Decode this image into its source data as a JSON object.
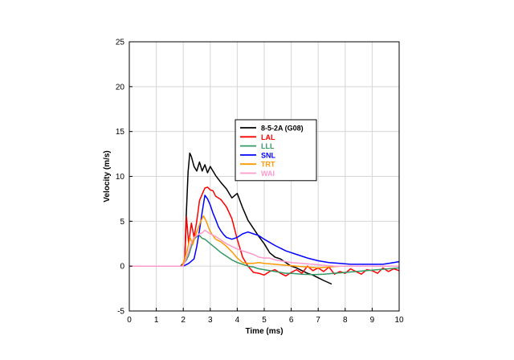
{
  "chart_data": {
    "type": "line",
    "xlabel": "Time (ms)",
    "ylabel": "Velocity (m/s)",
    "xlim": [
      0,
      10
    ],
    "ylim": [
      -5,
      25
    ],
    "xticks": [
      0,
      1,
      2,
      3,
      4,
      5,
      6,
      7,
      8,
      9,
      10
    ],
    "yticks": [
      -5,
      0,
      5,
      10,
      15,
      20,
      25
    ],
    "grid": true,
    "legend_position": "upper-center",
    "series": [
      {
        "name": "8-5-2A (G08)",
        "color": "#000000",
        "x": [
          0,
          1,
          1.9,
          2.05,
          2.1,
          2.18,
          2.24,
          2.3,
          2.4,
          2.5,
          2.6,
          2.7,
          2.8,
          2.9,
          3.0,
          3.2,
          3.4,
          3.6,
          3.8,
          4.0,
          4.2,
          4.4,
          4.6,
          4.8,
          5.0,
          5.2,
          5.4,
          5.6,
          5.8,
          6.0,
          6.2,
          6.4,
          6.6,
          6.8,
          7.0,
          7.2,
          7.5
        ],
        "y": [
          0,
          0,
          0,
          0.5,
          5,
          10.5,
          12.6,
          12.2,
          11.1,
          10.6,
          11.6,
          10.6,
          11.3,
          10.4,
          11.1,
          10.1,
          9.3,
          8.6,
          7.6,
          8.1,
          6.5,
          5.1,
          4.2,
          3.3,
          2.5,
          1.5,
          1.0,
          0.8,
          0.4,
          0.0,
          -0.2,
          -0.5,
          -0.8,
          -1.0,
          -1.3,
          -1.6,
          -2.0
        ]
      },
      {
        "name": "LAL",
        "color": "#ff0000",
        "x": [
          0,
          1,
          1.95,
          2.05,
          2.12,
          2.2,
          2.3,
          2.4,
          2.5,
          2.6,
          2.7,
          2.8,
          2.9,
          3.0,
          3.1,
          3.2,
          3.4,
          3.6,
          3.8,
          4.0,
          4.2,
          4.4,
          4.6,
          4.8,
          5.0,
          5.2,
          5.4,
          5.6,
          5.8,
          6.0,
          6.2,
          6.4,
          6.6,
          6.8,
          7.0,
          7.2,
          7.4,
          7.6,
          7.8,
          8.0,
          8.2,
          8.4,
          8.6,
          8.8,
          9.0,
          9.2,
          9.4,
          9.6,
          9.8,
          10.0
        ],
        "y": [
          0,
          0,
          0,
          0.5,
          5.5,
          2.5,
          4.8,
          3.2,
          5.0,
          7.3,
          8.0,
          8.7,
          8.8,
          8.5,
          8.4,
          7.8,
          7.4,
          6.6,
          5.3,
          3.0,
          1.0,
          0.0,
          -0.7,
          -0.8,
          -1.0,
          -0.6,
          -0.4,
          -0.8,
          -1.1,
          -0.7,
          -0.4,
          -0.8,
          0.0,
          -0.5,
          -0.2,
          -0.6,
          -0.1,
          -0.9,
          -0.6,
          -0.8,
          -0.3,
          -0.6,
          -0.9,
          -0.4,
          -0.5,
          -0.8,
          -0.2,
          -0.6,
          -0.3,
          -0.5
        ]
      },
      {
        "name": "LLL",
        "color": "#339966",
        "x": [
          0,
          1,
          1.95,
          2.1,
          2.2,
          2.3,
          2.4,
          2.5,
          2.6,
          2.7,
          2.8,
          3.0,
          3.2,
          3.4,
          3.6,
          3.8,
          4.0,
          4.2,
          4.4,
          4.6,
          4.8,
          5.0,
          5.2,
          5.4,
          5.6,
          5.8,
          6.0,
          6.4,
          6.8,
          7.2,
          7.6,
          8.0,
          8.4,
          8.8,
          9.2,
          9.6,
          10.0
        ],
        "y": [
          0,
          0,
          0,
          0.6,
          1.2,
          2.2,
          3.0,
          3.3,
          3.4,
          3.1,
          3.0,
          2.5,
          2.0,
          1.5,
          1.1,
          0.7,
          0.4,
          0.2,
          0.0,
          -0.1,
          -0.3,
          -0.4,
          -0.5,
          -0.6,
          -0.7,
          -0.8,
          -0.8,
          -0.9,
          -0.95,
          -0.9,
          -0.8,
          -0.7,
          -0.6,
          -0.5,
          -0.4,
          -0.3,
          -0.2
        ]
      },
      {
        "name": "SNL",
        "color": "#0000ff",
        "x": [
          0,
          1,
          2.0,
          2.2,
          2.4,
          2.5,
          2.6,
          2.7,
          2.8,
          2.9,
          3.0,
          3.1,
          3.2,
          3.3,
          3.4,
          3.5,
          3.6,
          3.8,
          4.0,
          4.2,
          4.4,
          4.6,
          4.8,
          5.0,
          5.4,
          5.8,
          6.2,
          6.6,
          7.0,
          7.4,
          7.8,
          8.2,
          8.6,
          9.0,
          9.4,
          9.8,
          10.0
        ],
        "y": [
          0,
          0,
          0,
          0.3,
          0.8,
          2.2,
          4.0,
          6.0,
          7.9,
          7.5,
          6.8,
          5.9,
          5.2,
          4.4,
          3.9,
          3.5,
          3.2,
          3.0,
          3.2,
          3.6,
          3.8,
          3.6,
          3.4,
          3.0,
          2.3,
          1.7,
          1.3,
          0.9,
          0.6,
          0.4,
          0.3,
          0.2,
          0.2,
          0.2,
          0.2,
          0.4,
          0.5
        ]
      },
      {
        "name": "TRT",
        "color": "#ff9900",
        "x": [
          0,
          1,
          1.95,
          2.05,
          2.15,
          2.25,
          2.35,
          2.45,
          2.55,
          2.65,
          2.75,
          2.85,
          2.95,
          3.05,
          3.2,
          3.4,
          3.6,
          3.8,
          4.0,
          4.2,
          4.4,
          4.6,
          4.8,
          5.0,
          5.4,
          5.8,
          6.2,
          6.6,
          7.0,
          7.4,
          7.8,
          8.2,
          8.6,
          9.0,
          9.4,
          9.8,
          10.0
        ],
        "y": [
          0,
          0,
          0,
          0.8,
          1.8,
          3.2,
          2.4,
          3.4,
          4.2,
          5.0,
          5.6,
          5.0,
          4.2,
          3.6,
          3.0,
          2.7,
          2.2,
          1.6,
          0.9,
          0.4,
          0.3,
          0.3,
          0.4,
          0.3,
          0.2,
          0.1,
          0.0,
          -0.1,
          -0.2,
          -0.1,
          0.0,
          0.0,
          0.0,
          0.0,
          0.0,
          0.0,
          0.0
        ]
      },
      {
        "name": "WAI",
        "color": "#ff99cc",
        "x": [
          0,
          1,
          2.0,
          2.1,
          2.2,
          2.3,
          2.4,
          2.5,
          2.6,
          2.7,
          2.8,
          3.0,
          3.2,
          3.4,
          3.6,
          3.8,
          4.0,
          4.2,
          4.4,
          4.6,
          4.8,
          5.0,
          5.2,
          5.4,
          5.6,
          5.8,
          6.0,
          6.4,
          6.8,
          7.2,
          7.6,
          8.0,
          8.4,
          8.8,
          9.2,
          9.6,
          10.0
        ],
        "y": [
          0,
          0,
          0,
          0.8,
          1.6,
          2.6,
          3.2,
          3.4,
          3.6,
          3.7,
          4.0,
          3.6,
          3.3,
          2.9,
          2.5,
          2.2,
          1.9,
          1.7,
          1.5,
          1.3,
          1.0,
          0.9,
          0.9,
          0.7,
          0.6,
          0.5,
          0.4,
          0.3,
          0.2,
          0.1,
          0.0,
          0.0,
          0.0,
          0.0,
          0.0,
          0.0,
          0.0
        ]
      }
    ]
  }
}
